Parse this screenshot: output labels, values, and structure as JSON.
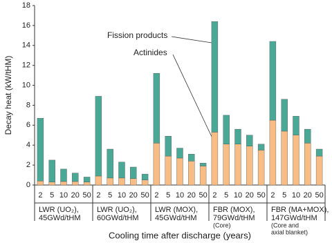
{
  "chart_data": {
    "type": "bar",
    "stacked": true,
    "y_label": "Decay heat (kW/tHM)",
    "x_label": "Cooling time after discharge (years)",
    "categories": [
      "2",
      "5",
      "10",
      "20",
      "50",
      "2",
      "5",
      "10",
      "20",
      "50",
      "2",
      "5",
      "10",
      "20",
      "50",
      "2",
      "5",
      "10",
      "20",
      "50",
      "2",
      "5",
      "10",
      "20",
      "50"
    ],
    "groups": [
      {
        "lines": [
          "LWR (UO₂),",
          "45GWd/tHM"
        ]
      },
      {
        "lines": [
          "LWR (UO₂),",
          "60GWd/tHM"
        ]
      },
      {
        "lines": [
          "LWR (MOX),",
          "45GWd/tHM"
        ]
      },
      {
        "lines": [
          "FBR (MOX),",
          "79GWd/tHM"
        ],
        "note": [
          "(Core)"
        ]
      },
      {
        "lines": [
          "FBR (MA+MOX),",
          "147GWd/tHM"
        ],
        "note": [
          "(Core and",
          "axial blanket)"
        ]
      }
    ],
    "series": [
      {
        "name": "Actinides",
        "color": "#f8bd85",
        "values": [
          0.4,
          0.3,
          0.35,
          0.35,
          0.3,
          0.9,
          0.7,
          0.7,
          0.65,
          0.5,
          4.2,
          2.9,
          2.7,
          2.4,
          1.9,
          5.3,
          4.1,
          4.1,
          3.9,
          3.5,
          6.5,
          5.4,
          5.0,
          4.2,
          2.9
        ]
      },
      {
        "name": "Fission products",
        "color": "#4aa896",
        "values": [
          6.3,
          2.2,
          1.25,
          0.85,
          0.5,
          8.0,
          2.9,
          1.6,
          1.15,
          0.6,
          7.0,
          2.0,
          1.0,
          0.7,
          0.3,
          11.1,
          2.9,
          1.5,
          1.1,
          0.6,
          7.9,
          3.2,
          1.9,
          1.4,
          0.7
        ]
      }
    ],
    "ylim": [
      0,
      18
    ],
    "yticks": [
      0,
      2,
      4,
      6,
      8,
      10,
      12,
      14,
      16,
      18
    ]
  }
}
